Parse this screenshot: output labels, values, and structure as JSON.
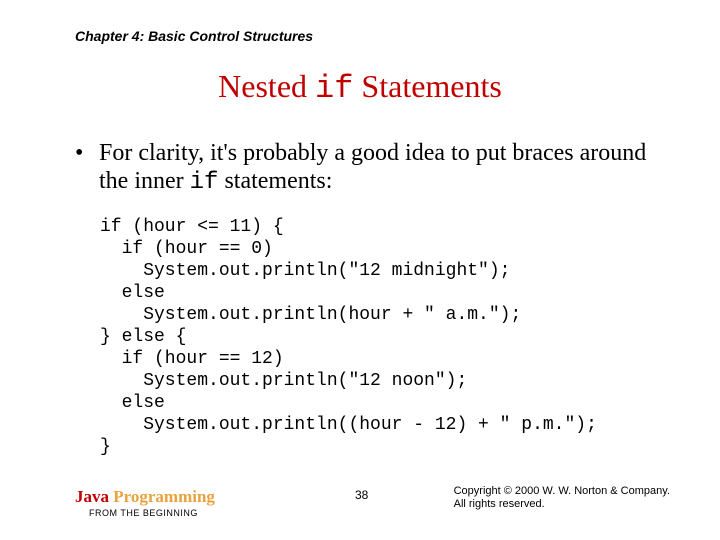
{
  "chapter_header": "Chapter 4: Basic Control Structures",
  "title": {
    "pre": "Nested ",
    "mono": "if",
    "post": " Statements"
  },
  "bullet": {
    "text_pre": "For clarity, it's probably a good idea to put braces around the inner ",
    "mono": "if",
    "text_post": " statements:"
  },
  "code": "if (hour <= 11) {\n  if (hour == 0)\n    System.out.println(\"12 midnight\");\n  else\n    System.out.println(hour + \" a.m.\");\n} else {\n  if (hour == 12)\n    System.out.println(\"12 noon\");\n  else\n    System.out.println((hour - 12) + \" p.m.\");\n}",
  "footer": {
    "java": "Java",
    "prog": " Programming",
    "sub": "FROM THE BEGINNING",
    "page": "38",
    "copyright_line1": "Copyright © 2000 W. W. Norton & Company.",
    "copyright_line2": "All rights reserved."
  }
}
